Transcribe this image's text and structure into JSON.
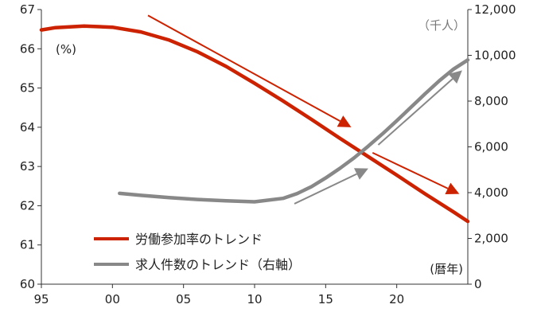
{
  "chart_data": {
    "type": "line",
    "left_unit": "(%)",
    "right_unit": "（千人）",
    "x_unit": "(暦年)",
    "x_range": [
      1995,
      2025
    ],
    "x_ticks": [
      {
        "year": 1995,
        "label": "95"
      },
      {
        "year": 2000,
        "label": "00"
      },
      {
        "year": 2005,
        "label": "05"
      },
      {
        "year": 2010,
        "label": "10"
      },
      {
        "year": 2015,
        "label": "15"
      },
      {
        "year": 2020,
        "label": "20"
      }
    ],
    "y_left": {
      "range": [
        60,
        67
      ],
      "ticks": [
        {
          "value": 60,
          "label": "60"
        },
        {
          "value": 61,
          "label": "61"
        },
        {
          "value": 62,
          "label": "62"
        },
        {
          "value": 63,
          "label": "63"
        },
        {
          "value": 64,
          "label": "64"
        },
        {
          "value": 65,
          "label": "65"
        },
        {
          "value": 66,
          "label": "66"
        },
        {
          "value": 67,
          "label": "67"
        }
      ]
    },
    "y_right": {
      "range": [
        0,
        12000
      ],
      "ticks": [
        {
          "value": 0,
          "label": "0"
        },
        {
          "value": 2000,
          "label": "2,000"
        },
        {
          "value": 4000,
          "label": "4,000"
        },
        {
          "value": 6000,
          "label": "6,000"
        },
        {
          "value": 8000,
          "label": "8,000"
        },
        {
          "value": 10000,
          "label": "10,000"
        },
        {
          "value": 12000,
          "label": "12,000"
        }
      ]
    },
    "series": [
      {
        "name": "労働参加率のトレンド",
        "axis": "left",
        "color": "#cc2200",
        "x": [
          1995,
          1996,
          1998,
          2000,
          2002,
          2004,
          2006,
          2008,
          2010,
          2012,
          2014,
          2016,
          2018,
          2020,
          2022,
          2024,
          2025
        ],
        "values": [
          66.48,
          66.54,
          66.58,
          66.55,
          66.43,
          66.22,
          65.92,
          65.55,
          65.12,
          64.67,
          64.2,
          63.72,
          63.25,
          62.78,
          62.3,
          61.84,
          61.6
        ]
      },
      {
        "name": "求人件数のトレンド（右軸）",
        "axis": "right",
        "color": "#888888",
        "x": [
          2000.5,
          2002,
          2004,
          2006,
          2008,
          2010,
          2012,
          2013,
          2014,
          2015,
          2016,
          2017,
          2018,
          2019,
          2020,
          2021,
          2022,
          2023,
          2024,
          2025
        ],
        "values": [
          3970,
          3880,
          3780,
          3700,
          3640,
          3600,
          3750,
          3960,
          4260,
          4640,
          5060,
          5520,
          6030,
          6570,
          7140,
          7730,
          8320,
          8890,
          9400,
          9800
        ]
      }
    ],
    "annotation_arrows": [
      {
        "color": "#cc2200",
        "from": [
          2002.5,
          66.85
        ],
        "to": [
          2016.8,
          64.0
        ]
      },
      {
        "color": "#cc2200",
        "from": [
          2018.3,
          63.35
        ],
        "to": [
          2024.4,
          62.3
        ]
      },
      {
        "color": "#888888",
        "from": [
          2012.8,
          62.05
        ],
        "to": [
          2018.0,
          62.95
        ]
      },
      {
        "color": "#888888",
        "from": [
          2018.7,
          63.55
        ],
        "to": [
          2024.6,
          65.45
        ]
      }
    ]
  }
}
